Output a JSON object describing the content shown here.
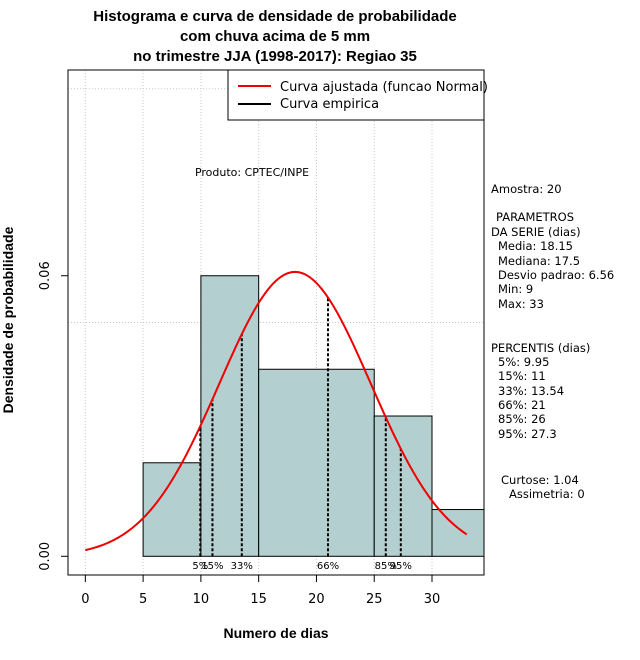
{
  "chart_data": {
    "type": "bar",
    "title_lines": [
      "Histograma e curva de densidade de probabilidade",
      "com chuva acima de 5 mm",
      "no trimestre JJA (1998-2017): Regiao 35"
    ],
    "xlabel": "Numero de dias",
    "ylabel": "Densidade de probabilidade",
    "xlim": [
      -1.5,
      34.5
    ],
    "ylim": [
      -0.004,
      0.104
    ],
    "x_ticks": [
      0,
      5,
      10,
      15,
      20,
      25,
      30
    ],
    "y_ticks": [
      0.0,
      0.06
    ],
    "y_tick_labels": [
      "0.00",
      "0.06"
    ],
    "grid_x": [
      0,
      5,
      10,
      15,
      20,
      25,
      30
    ],
    "grid_y": [
      0.05,
      0.1
    ],
    "bins": [
      {
        "start": 5,
        "end": 10,
        "density": 0.02
      },
      {
        "start": 10,
        "end": 15,
        "density": 0.06
      },
      {
        "start": 15,
        "end": 25,
        "density": 0.04
      },
      {
        "start": 25,
        "end": 30,
        "density": 0.03
      },
      {
        "start": 30,
        "end": 35,
        "density": 0.01
      }
    ],
    "bar_color": "#b4cfcf",
    "normal_curve": {
      "mean": 18.15,
      "sd": 6.56,
      "x_from": 0,
      "x_to": 33,
      "color": "#ee0000"
    },
    "percentiles": [
      {
        "value": 9.95,
        "label": "5%"
      },
      {
        "value": 11,
        "label": "15%"
      },
      {
        "value": 13.54,
        "label": "33%"
      },
      {
        "value": 21,
        "label": "66%"
      },
      {
        "value": 26,
        "label": "85%"
      },
      {
        "value": 27.3,
        "label": "95%"
      }
    ],
    "legend": [
      {
        "label": "Curva ajustada (funcao Normal)",
        "color": "#ee0000"
      },
      {
        "label": "Curva empirica",
        "color": "#000000"
      }
    ],
    "product_label": "Produto: CPTEC/INPE"
  },
  "side_panel": {
    "amostra": "Amostra: 20",
    "params_lines": [
      "PARAMETROS",
      "DA SERIE (dias)",
      "Media: 18.15",
      "Mediana: 17.5",
      "Desvio padrao: 6.56",
      "Min: 9",
      "Max: 33"
    ],
    "percentis_lines": [
      "PERCENTIS (dias)",
      "5%: 9.95",
      "15%: 11",
      "33%: 13.54",
      "66%: 21",
      "85%: 26",
      "95%: 27.3"
    ],
    "curtose": "Curtose: 1.04",
    "assimetria": "Assimetria: 0"
  }
}
